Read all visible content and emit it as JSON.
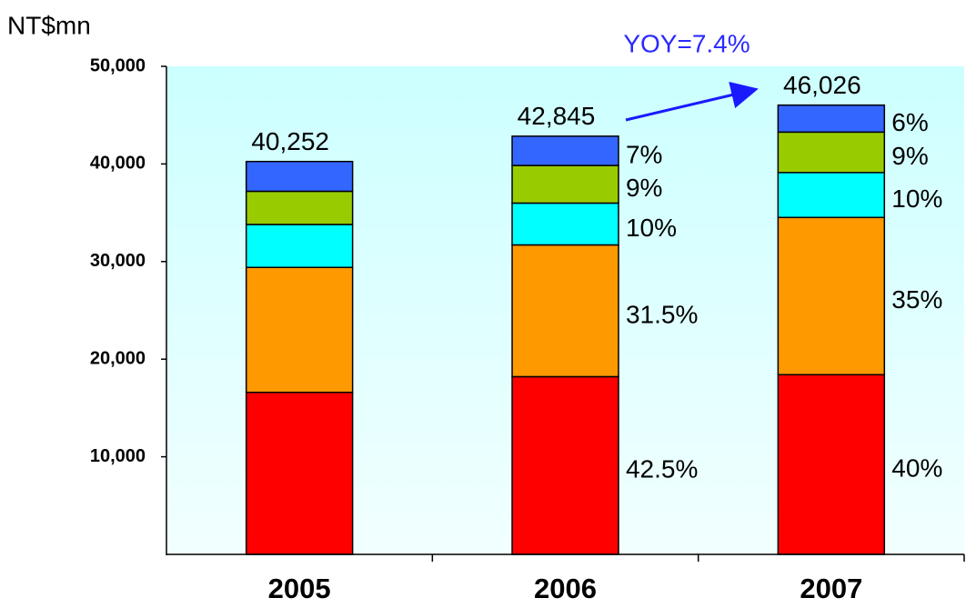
{
  "chart_data": {
    "type": "stacked_bar",
    "y_axis_label": "NT$mn",
    "annotation": "YOY=7.4%",
    "categories": [
      "2005",
      "2006",
      "2007"
    ],
    "series": [
      {
        "color": "#ff0000",
        "values": [
          16600,
          18209,
          18410
        ],
        "share_labels": [
          null,
          "42.5%",
          "40%"
        ]
      },
      {
        "color": "#ff9900",
        "values": [
          12800,
          13496,
          16109
        ],
        "share_labels": [
          null,
          "31.5%",
          "35%"
        ]
      },
      {
        "color": "#00ffff",
        "values": [
          4400,
          4285,
          4603
        ],
        "share_labels": [
          null,
          "10%",
          "10%"
        ]
      },
      {
        "color": "#99cc00",
        "values": [
          3400,
          3856,
          4142
        ],
        "share_labels": [
          null,
          "9%",
          "9%"
        ]
      },
      {
        "color": "#3366ff",
        "values": [
          3052,
          2999,
          2762
        ],
        "share_labels": [
          null,
          "7%",
          "6%"
        ]
      }
    ],
    "totals": [
      40252,
      42845,
      46026
    ],
    "total_labels": [
      "40,252",
      "42,845",
      "46,026"
    ],
    "ylim": [
      0,
      50000
    ],
    "yticks": [
      {
        "value": 10000,
        "label": "10,000"
      },
      {
        "value": 20000,
        "label": "20,000"
      },
      {
        "value": 30000,
        "label": "30,000"
      },
      {
        "value": 40000,
        "label": "40,000"
      },
      {
        "value": 50000,
        "label": "50,000"
      }
    ],
    "grid": false
  }
}
